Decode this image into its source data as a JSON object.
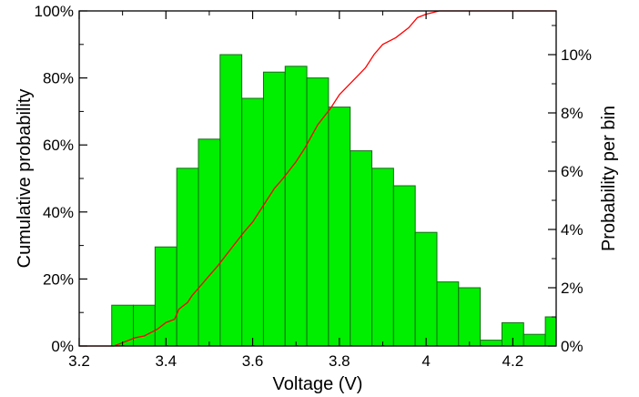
{
  "chart_data": {
    "type": "bar",
    "title": "",
    "xlabel": "Voltage (V)",
    "ylabel_left": "Cumulative probability",
    "ylabel_right": "Probability per bin",
    "xlim": [
      3.2,
      4.3
    ],
    "ylim_left": [
      0,
      100
    ],
    "ylim_right": [
      0,
      11.5
    ],
    "x_ticks": [
      3.2,
      3.4,
      3.6,
      3.8,
      4.0,
      4.2
    ],
    "x_tick_labels": [
      "3.2",
      "3.4",
      "3.6",
      "3.8",
      "4",
      "4.2"
    ],
    "y_left_ticks": [
      0,
      20,
      40,
      60,
      80,
      100
    ],
    "y_left_tick_labels": [
      "0%",
      "20%",
      "40%",
      "60%",
      "80%",
      "100%"
    ],
    "y_right_ticks": [
      0,
      2,
      4,
      6,
      8,
      10
    ],
    "y_right_tick_labels": [
      "0%",
      "2%",
      "4%",
      "6%",
      "8%",
      "10%"
    ],
    "bar_color": "#00ee00",
    "line_color": "#ff0000",
    "histogram": {
      "name": "Probability per bin",
      "bin_width": 0.05,
      "bin_starts": [
        3.275,
        3.325,
        3.375,
        3.425,
        3.475,
        3.525,
        3.575,
        3.625,
        3.675,
        3.725,
        3.775,
        3.825,
        3.875,
        3.925,
        3.975,
        4.025,
        4.075,
        4.125,
        4.175,
        4.225,
        4.275
      ],
      "values": [
        1.4,
        1.4,
        3.4,
        6.1,
        7.1,
        10.0,
        8.5,
        9.4,
        9.6,
        9.2,
        8.2,
        6.7,
        6.1,
        5.5,
        3.9,
        2.2,
        2.0,
        0.2,
        0.8,
        0.4,
        1.0
      ]
    },
    "cumulative": {
      "name": "Cumulative probability",
      "x": [
        3.2,
        3.28,
        3.3,
        3.32,
        3.33,
        3.35,
        3.38,
        3.4,
        3.42,
        3.43,
        3.45,
        3.46,
        3.48,
        3.5,
        3.52,
        3.55,
        3.58,
        3.6,
        3.62,
        3.65,
        3.67,
        3.7,
        3.72,
        3.75,
        3.78,
        3.8,
        3.83,
        3.86,
        3.88,
        3.9,
        3.93,
        3.96,
        3.98,
        4.0,
        4.03,
        4.05,
        4.08,
        4.1,
        4.13,
        4.15,
        4.18,
        4.2,
        4.25,
        4.3
      ],
      "y": [
        0,
        0,
        1,
        2,
        2.5,
        3,
        5,
        7,
        8,
        11,
        13,
        15,
        18,
        21,
        24,
        29,
        34,
        37,
        41,
        47,
        50,
        55,
        59,
        66,
        71,
        75,
        79,
        83,
        87,
        90,
        92,
        95,
        98,
        99,
        101,
        102,
        104,
        106,
        107,
        107,
        107,
        108,
        108,
        110
      ]
    }
  }
}
